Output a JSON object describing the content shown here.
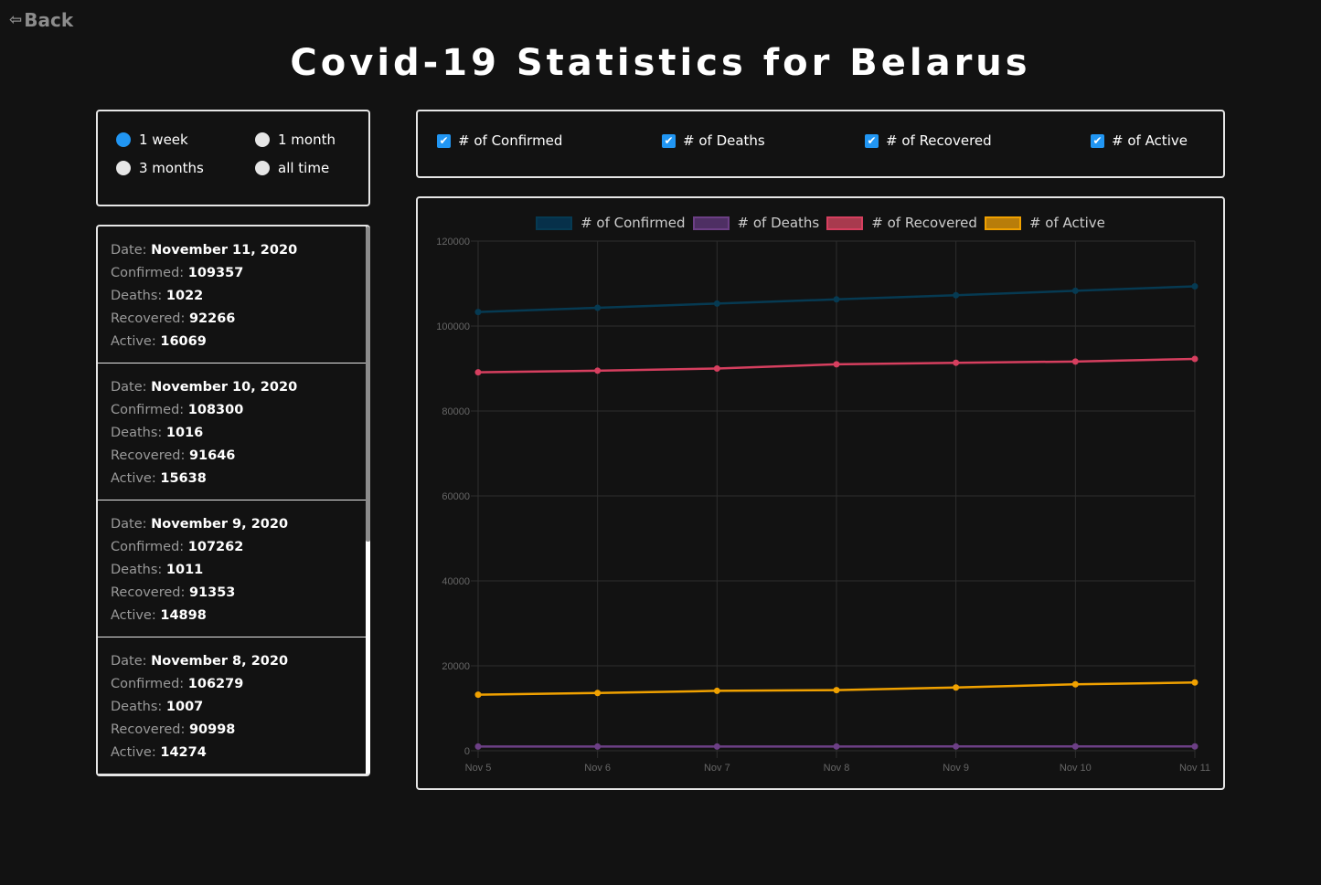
{
  "nav": {
    "back_label": "Back"
  },
  "page": {
    "title": "Covid-19 Statistics for Belarus"
  },
  "range": {
    "options": [
      {
        "label": "1 week",
        "selected": true
      },
      {
        "label": "1 month",
        "selected": false
      },
      {
        "label": "3 months",
        "selected": false
      },
      {
        "label": "all time",
        "selected": false
      }
    ]
  },
  "toggles": [
    {
      "label": "# of Confirmed",
      "checked": true
    },
    {
      "label": "# of Deaths",
      "checked": true
    },
    {
      "label": "# of Recovered",
      "checked": true
    },
    {
      "label": "# of Active",
      "checked": true
    }
  ],
  "list": {
    "keys": {
      "date": "Date:",
      "confirmed": "Confirmed:",
      "deaths": "Deaths:",
      "recovered": "Recovered:",
      "active": "Active:"
    },
    "records": [
      {
        "date": "November 11, 2020",
        "confirmed": "109357",
        "deaths": "1022",
        "recovered": "92266",
        "active": "16069"
      },
      {
        "date": "November 10, 2020",
        "confirmed": "108300",
        "deaths": "1016",
        "recovered": "91646",
        "active": "15638"
      },
      {
        "date": "November 9, 2020",
        "confirmed": "107262",
        "deaths": "1011",
        "recovered": "91353",
        "active": "14898"
      },
      {
        "date": "November 8, 2020",
        "confirmed": "106279",
        "deaths": "1007",
        "recovered": "90998",
        "active": "14274"
      }
    ]
  },
  "chart_data": {
    "type": "line",
    "x": [
      "Nov 5",
      "Nov 6",
      "Nov 7",
      "Nov 8",
      "Nov 9",
      "Nov 10",
      "Nov 11"
    ],
    "ylim": [
      0,
      120000
    ],
    "yticks": [
      "0",
      "20000",
      "40000",
      "60000",
      "80000",
      "100000",
      "120000"
    ],
    "grid": true,
    "legend_position": "top",
    "series": [
      {
        "name": "# of Confirmed",
        "color": "#063a52",
        "fill": "#06304a",
        "values": [
          103300,
          104300,
          105300,
          106279,
          107262,
          108300,
          109357
        ]
      },
      {
        "name": "# of Deaths",
        "color": "#6c3f85",
        "fill": "#4e2f63",
        "values": [
          990,
          995,
          1000,
          1007,
          1011,
          1016,
          1022
        ]
      },
      {
        "name": "# of Recovered",
        "color": "#d63f5f",
        "fill": "#a83a4e",
        "values": [
          89100,
          89500,
          90000,
          90998,
          91353,
          91646,
          92266
        ]
      },
      {
        "name": "# of Active",
        "color": "#f0a100",
        "fill": "#b87d0a",
        "values": [
          13200,
          13600,
          14100,
          14274,
          14898,
          15638,
          16069
        ]
      }
    ]
  }
}
